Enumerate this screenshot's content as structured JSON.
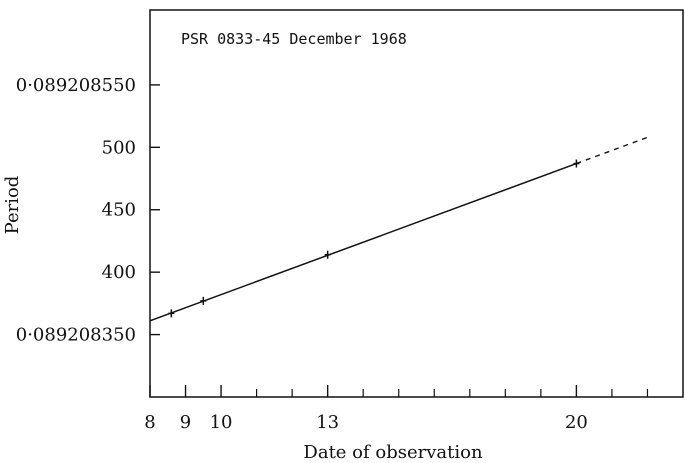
{
  "chart_data": {
    "type": "line",
    "title": "PSR 0833-45 December 1968",
    "xlabel": "Date of observation",
    "ylabel": "Period",
    "xlim": [
      8,
      23
    ],
    "ylim": [
      300,
      610
    ],
    "x_ticks": [
      8,
      9,
      10,
      13,
      20
    ],
    "x_tick_labels": [
      "8",
      "9",
      "10",
      "13",
      "20"
    ],
    "x_minor_ticks": [
      11,
      12,
      14,
      15,
      16,
      17,
      18,
      19,
      21,
      22
    ],
    "y_ticks": [
      350,
      400,
      450,
      500,
      550
    ],
    "y_tick_labels": [
      "0·089208350",
      "400",
      "450",
      "500",
      "0·089208550"
    ],
    "grid": false,
    "series": [
      {
        "points": [
          {
            "x": 8.6,
            "y": 367
          },
          {
            "x": 9.5,
            "y": 377
          },
          {
            "x": 13.0,
            "y": 414
          },
          {
            "x": 20.0,
            "y": 487
          }
        ],
        "fit_line": [
          {
            "x": 8.0,
            "y": 361
          },
          {
            "x": 20.0,
            "y": 487
          }
        ],
        "extrapolation": [
          {
            "x": 20.0,
            "y": 487
          },
          {
            "x": 22.0,
            "y": 508
          }
        ]
      }
    ]
  }
}
